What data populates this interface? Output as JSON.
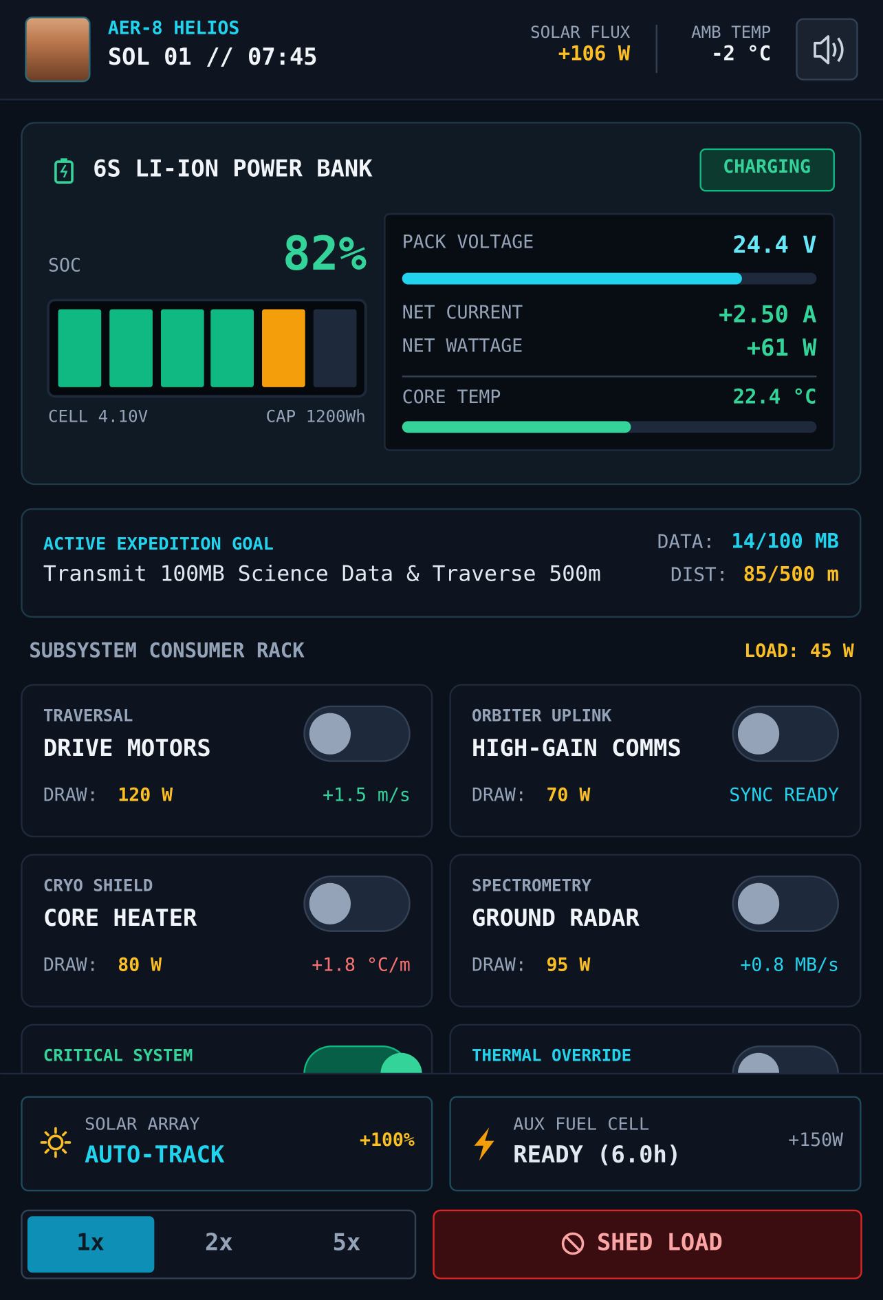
{
  "header": {
    "unit": "AER-8 HELIOS",
    "clock": "SOL 01 // 07:45",
    "solar_flux": {
      "label": "SOLAR FLUX",
      "value": "+106 W"
    },
    "amb_temp": {
      "label": "AMB TEMP",
      "value": "-2 °C"
    }
  },
  "power_bank": {
    "title": "6S LI-ION POWER BANK",
    "status": "CHARGING",
    "soc_label": "SOC",
    "soc": "82%",
    "cell": "CELL 4.10V",
    "cap": "CAP 1200Wh",
    "metrics": [
      {
        "label": "PACK VOLTAGE",
        "value": "24.4 V"
      },
      {
        "label": "NET CURRENT",
        "value": "+2.50 A"
      },
      {
        "label": "NET WATTAGE",
        "value": "+61 W"
      },
      {
        "label": "CORE TEMP",
        "value": "22.4 °C"
      }
    ]
  },
  "goal": {
    "label": "ACTIVE EXPEDITION GOAL",
    "text": "Transmit 100MB Science Data & Traverse 500m",
    "data_label": "DATA:",
    "data_value": "14/100 MB",
    "dist_label": "DIST:",
    "dist_value": "85/500 m"
  },
  "rack": {
    "title": "SUBSYSTEM CONSUMER RACK",
    "load": "LOAD: 45 W",
    "cards": [
      {
        "category": "TRAVERSAL",
        "name": "DRIVE MOTORS",
        "draw_label": "DRAW:",
        "draw": "120 W",
        "rate": "+1.5 m/s",
        "color": "#34d399"
      },
      {
        "category": "ORBITER UPLINK",
        "name": "HIGH-GAIN COMMS",
        "draw_label": "DRAW:",
        "draw": "70 W",
        "rate": "SYNC READY",
        "color": "#22d3ee"
      },
      {
        "category": "CRYO SHIELD",
        "name": "CORE HEATER",
        "draw_label": "DRAW:",
        "draw": "80 W",
        "rate": "+1.8 °C/m",
        "color": "#f87171"
      },
      {
        "category": "SPECTROMETRY",
        "name": "GROUND RADAR",
        "draw_label": "DRAW:",
        "draw": "95 W",
        "rate": "+0.8 MB/s",
        "color": "#22d3ee"
      }
    ],
    "partial_cards": [
      {
        "category": "CRITICAL SYSTEM",
        "color": "#34d399"
      },
      {
        "category": "THERMAL OVERRIDE",
        "color": "#22d3ee"
      }
    ]
  },
  "power_sources": [
    {
      "label": "SOLAR ARRAY",
      "status": "AUTO-TRACK",
      "value": "+100%"
    },
    {
      "label": "AUX FUEL CELL",
      "status": "READY (6.0h)",
      "value": "+150W"
    }
  ],
  "speed": [
    "1x",
    "2x",
    "5x"
  ],
  "shed": "SHED LOAD"
}
